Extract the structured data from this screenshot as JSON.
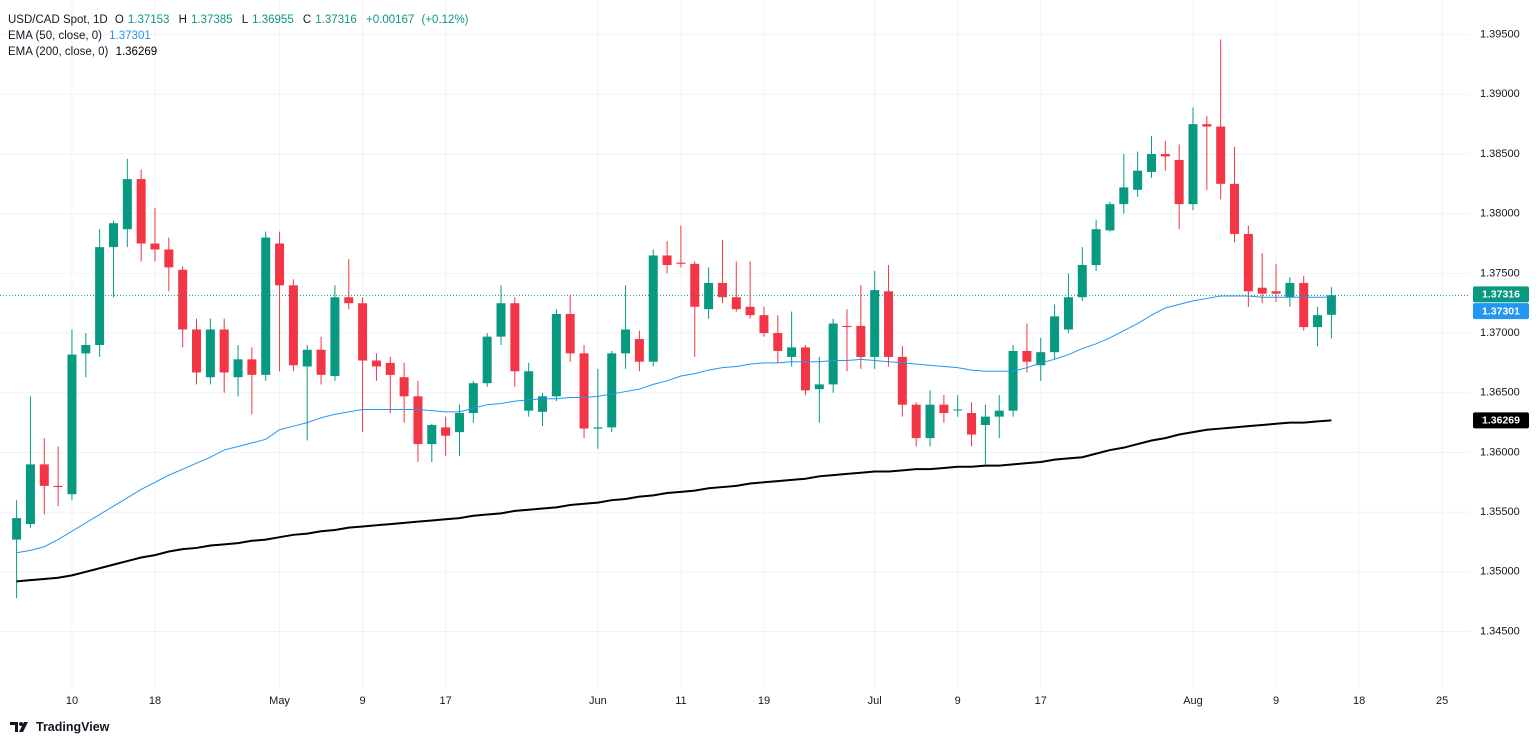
{
  "chart_data": {
    "type": "candlestick",
    "title": "USD/CAD Spot, 1D",
    "ohlc_labels": [
      "O",
      "H",
      "L",
      "C"
    ],
    "change": "+0.00167",
    "change_pct": "(+0.12%)",
    "brand": "TradingView",
    "up_color": "#089981",
    "down_color": "#f23645",
    "last_line": true,
    "grid": true,
    "categories": [
      null,
      null,
      null,
      null,
      "10",
      null,
      null,
      null,
      null,
      null,
      "18",
      null,
      null,
      null,
      null,
      null,
      null,
      null,
      null,
      "May",
      null,
      null,
      null,
      null,
      null,
      "9",
      null,
      null,
      null,
      null,
      null,
      "17",
      null,
      null,
      null,
      null,
      null,
      null,
      null,
      null,
      null,
      null,
      "Jun",
      null,
      null,
      null,
      null,
      null,
      "11",
      null,
      null,
      null,
      null,
      null,
      "19",
      null,
      null,
      null,
      null,
      null,
      null,
      null,
      "Jul",
      null,
      null,
      null,
      null,
      null,
      "9",
      null,
      null,
      null,
      null,
      null,
      "17",
      null,
      null,
      null,
      null,
      null,
      null,
      null,
      null,
      null,
      null,
      "Aug",
      null,
      null,
      null,
      null,
      null,
      "9",
      null,
      null,
      null,
      null,
      null,
      "18",
      null,
      null,
      null,
      null,
      null,
      "25"
    ],
    "open": [
      1.3527,
      1.354,
      1.359,
      1.3572,
      1.3565,
      1.3683,
      1.369,
      1.3772,
      1.3787,
      1.3829,
      1.3775,
      1.377,
      1.3753,
      1.3703,
      1.3663,
      1.3703,
      1.3663,
      1.3678,
      1.3665,
      1.3775,
      1.374,
      1.3672,
      1.3686,
      1.3664,
      1.373,
      1.3725,
      1.3677,
      1.3675,
      1.3663,
      1.3647,
      1.3607,
      1.3621,
      1.3617,
      1.3633,
      1.3658,
      1.3697,
      1.3725,
      1.3635,
      1.3634,
      1.3647,
      1.3716,
      1.3683,
      1.362,
      1.3621,
      1.3683,
      1.3695,
      1.3676,
      1.3765,
      1.3759,
      1.3758,
      1.372,
      1.3742,
      1.373,
      1.3722,
      1.3715,
      1.37,
      1.368,
      1.3688,
      1.3653,
      1.3657,
      1.3706,
      1.3706,
      1.368,
      1.3735,
      1.368,
      1.364,
      1.3612,
      1.364,
      1.3636,
      1.3633,
      1.3623,
      1.363,
      1.3635,
      1.3685,
      1.3673,
      1.3684,
      1.3703,
      1.373,
      1.3757,
      1.3786,
      1.3808,
      1.382,
      1.3835,
      1.385,
      1.3845,
      1.3808,
      1.3875,
      1.3873,
      1.3825,
      1.3783,
      1.3738,
      1.3735,
      1.373,
      1.3742,
      1.3705,
      1.37153,
      null,
      null,
      null,
      null,
      null,
      null,
      null,
      null
    ],
    "high": [
      1.356,
      1.3647,
      1.3612,
      1.3605,
      1.3703,
      1.37,
      1.3787,
      1.3794,
      1.3846,
      1.3837,
      1.3805,
      1.378,
      1.3756,
      1.3712,
      1.3712,
      1.3712,
      1.369,
      1.3688,
      1.3785,
      1.3785,
      1.3745,
      1.369,
      1.3697,
      1.374,
      1.3762,
      1.373,
      1.3683,
      1.368,
      1.3675,
      1.366,
      1.3624,
      1.363,
      1.364,
      1.366,
      1.37,
      1.374,
      1.373,
      1.3675,
      1.365,
      1.372,
      1.3732,
      1.369,
      1.367,
      1.3685,
      1.374,
      1.3702,
      1.377,
      1.3777,
      1.379,
      1.376,
      1.3755,
      1.3778,
      1.376,
      1.376,
      1.3722,
      1.3715,
      1.3718,
      1.369,
      1.368,
      1.3712,
      1.372,
      1.374,
      1.3752,
      1.3757,
      1.3689,
      1.3642,
      1.3652,
      1.3648,
      1.3648,
      1.3642,
      1.364,
      1.3648,
      1.369,
      1.3708,
      1.3696,
      1.3724,
      1.375,
      1.3772,
      1.3795,
      1.381,
      1.385,
      1.3852,
      1.3865,
      1.3861,
      1.3858,
      1.3889,
      1.3882,
      1.3946,
      1.3856,
      1.379,
      1.3767,
      1.3758,
      1.3747,
      1.3748,
      1.3722,
      1.37385,
      null,
      null,
      null,
      null,
      null,
      null,
      null,
      null
    ],
    "low": [
      1.3478,
      1.3537,
      1.3548,
      1.3555,
      1.356,
      1.3663,
      1.368,
      1.373,
      1.3772,
      1.376,
      1.376,
      1.3735,
      1.3688,
      1.3657,
      1.3657,
      1.365,
      1.3647,
      1.3632,
      1.366,
      1.3668,
      1.3668,
      1.361,
      1.3657,
      1.366,
      1.372,
      1.3617,
      1.366,
      1.3633,
      1.3625,
      1.3592,
      1.3592,
      1.3597,
      1.3597,
      1.3625,
      1.3655,
      1.369,
      1.3655,
      1.363,
      1.3622,
      1.3643,
      1.3676,
      1.3612,
      1.3603,
      1.3617,
      1.367,
      1.3668,
      1.3672,
      1.375,
      1.3755,
      1.368,
      1.3712,
      1.3725,
      1.3718,
      1.3712,
      1.3697,
      1.3675,
      1.3672,
      1.3648,
      1.3625,
      1.365,
      1.3668,
      1.367,
      1.367,
      1.3672,
      1.363,
      1.3605,
      1.3605,
      1.3625,
      1.363,
      1.3605,
      1.359,
      1.3612,
      1.363,
      1.3667,
      1.366,
      1.3678,
      1.37,
      1.3727,
      1.3752,
      1.3785,
      1.38,
      1.3814,
      1.383,
      1.3836,
      1.3787,
      1.3803,
      1.382,
      1.3812,
      1.3776,
      1.3722,
      1.3725,
      1.3726,
      1.3722,
      1.3702,
      1.3689,
      1.36955,
      null,
      null,
      null,
      null,
      null,
      null,
      null,
      null
    ],
    "close": [
      1.3545,
      1.359,
      1.3572,
      1.3571,
      1.3682,
      1.369,
      1.3772,
      1.3792,
      1.3829,
      1.3775,
      1.377,
      1.3755,
      1.3703,
      1.3667,
      1.3703,
      1.3667,
      1.3678,
      1.3665,
      1.378,
      1.374,
      1.3673,
      1.3686,
      1.3665,
      1.373,
      1.3725,
      1.3677,
      1.3672,
      1.3665,
      1.3647,
      1.3607,
      1.3623,
      1.3614,
      1.3633,
      1.3658,
      1.3697,
      1.3725,
      1.3668,
      1.3668,
      1.3647,
      1.3716,
      1.3683,
      1.362,
      1.3621,
      1.3683,
      1.3703,
      1.3676,
      1.3765,
      1.3757,
      1.3758,
      1.3722,
      1.3742,
      1.373,
      1.372,
      1.3715,
      1.37,
      1.3685,
      1.3688,
      1.3652,
      1.3657,
      1.3708,
      1.3705,
      1.368,
      1.3736,
      1.368,
      1.364,
      1.3612,
      1.364,
      1.3633,
      1.3636,
      1.3615,
      1.363,
      1.3635,
      1.3685,
      1.3676,
      1.3684,
      1.3714,
      1.373,
      1.3757,
      1.3787,
      1.3808,
      1.3822,
      1.3836,
      1.385,
      1.3848,
      1.3808,
      1.3875,
      1.3873,
      1.3825,
      1.3783,
      1.3735,
      1.3733,
      1.3733,
      1.3742,
      1.3705,
      1.3715,
      1.37316,
      null,
      null,
      null,
      null,
      null,
      null,
      null,
      null
    ],
    "series": [
      {
        "name": "EMA (50, close, 0)",
        "color": "#2196f3",
        "values": [
          1.3516,
          1.3518,
          1.3521,
          1.3527,
          1.3534,
          1.3541,
          1.3548,
          1.3555,
          1.3562,
          1.3569,
          1.3575,
          1.3581,
          1.3586,
          1.3591,
          1.3596,
          1.3602,
          1.3605,
          1.3608,
          1.3611,
          1.3619,
          1.3622,
          1.3625,
          1.3629,
          1.3632,
          1.3634,
          1.3636,
          1.3636,
          1.3636,
          1.3636,
          1.3636,
          1.3635,
          1.3634,
          1.3634,
          1.3637,
          1.364,
          1.3641,
          1.3643,
          1.3644,
          1.3645,
          1.3645,
          1.3646,
          1.3646,
          1.3647,
          1.3649,
          1.3651,
          1.3653,
          1.3657,
          1.366,
          1.3664,
          1.3666,
          1.3669,
          1.3671,
          1.3672,
          1.3674,
          1.3675,
          1.3675,
          1.3676,
          1.3676,
          1.3676,
          1.3677,
          1.3677,
          1.3678,
          1.3677,
          1.3676,
          1.3675,
          1.3674,
          1.3673,
          1.3672,
          1.3671,
          1.3669,
          1.3668,
          1.3668,
          1.3668,
          1.3671,
          1.3675,
          1.3678,
          1.3682,
          1.3687,
          1.3691,
          1.3696,
          1.3702,
          1.3708,
          1.3715,
          1.3721,
          1.3724,
          1.3727,
          1.3729,
          1.3731,
          1.3731,
          1.3731,
          1.373,
          1.373,
          1.373,
          1.373,
          1.373,
          1.37301,
          null,
          null,
          null,
          null,
          null,
          null,
          null,
          null
        ]
      },
      {
        "name": "EMA (200, close, 0)",
        "color": "#000000",
        "values": [
          1.3492,
          1.3493,
          1.3494,
          1.3495,
          1.3497,
          1.35,
          1.3503,
          1.3506,
          1.3509,
          1.3512,
          1.3514,
          1.3517,
          1.3519,
          1.352,
          1.3522,
          1.3523,
          1.3524,
          1.3526,
          1.3527,
          1.3529,
          1.3531,
          1.3532,
          1.3534,
          1.3535,
          1.3537,
          1.3538,
          1.3539,
          1.354,
          1.3541,
          1.3542,
          1.3543,
          1.3544,
          1.3545,
          1.3547,
          1.3548,
          1.3549,
          1.3551,
          1.3552,
          1.3553,
          1.3554,
          1.3556,
          1.3557,
          1.3558,
          1.356,
          1.3561,
          1.3563,
          1.3564,
          1.3566,
          1.3567,
          1.3568,
          1.357,
          1.3571,
          1.3572,
          1.3574,
          1.3575,
          1.3576,
          1.3577,
          1.3578,
          1.358,
          1.3581,
          1.3582,
          1.3583,
          1.3584,
          1.3584,
          1.3585,
          1.3586,
          1.3586,
          1.3587,
          1.3588,
          1.3588,
          1.3589,
          1.3589,
          1.359,
          1.3591,
          1.3592,
          1.3594,
          1.3595,
          1.3596,
          1.3599,
          1.3602,
          1.3604,
          1.3607,
          1.361,
          1.3612,
          1.3615,
          1.3617,
          1.3619,
          1.362,
          1.3621,
          1.3622,
          1.3623,
          1.3624,
          1.3625,
          1.3625,
          1.3626,
          1.36269,
          null,
          null,
          null,
          null,
          null,
          null,
          null,
          null
        ]
      }
    ],
    "ylim": [
      1.3401,
      1.3979
    ],
    "yticks": [
      {
        "value": 1.345,
        "label": "1.34500"
      },
      {
        "value": 1.35,
        "label": "1.35000"
      },
      {
        "value": 1.355,
        "label": "1.35500"
      },
      {
        "value": 1.36,
        "label": "1.36000"
      },
      {
        "value": 1.365,
        "label": "1.36500"
      },
      {
        "value": 1.37,
        "label": "1.37000"
      },
      {
        "value": 1.375,
        "label": "1.37500"
      },
      {
        "value": 1.38,
        "label": "1.38000"
      },
      {
        "value": 1.385,
        "label": "1.38500"
      },
      {
        "value": 1.39,
        "label": "1.39000"
      },
      {
        "value": 1.395,
        "label": "1.39500"
      }
    ]
  }
}
